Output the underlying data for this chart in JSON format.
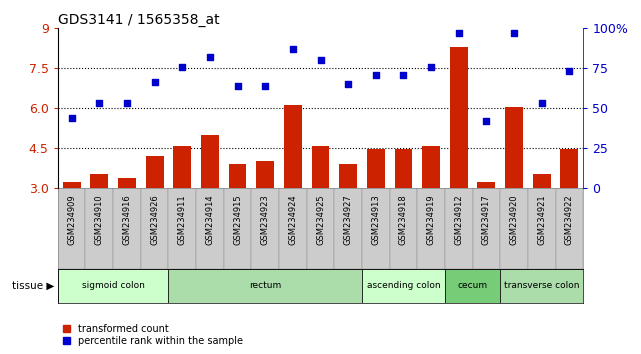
{
  "title": "GDS3141 / 1565358_at",
  "samples": [
    "GSM234909",
    "GSM234910",
    "GSM234916",
    "GSM234926",
    "GSM234911",
    "GSM234914",
    "GSM234915",
    "GSM234923",
    "GSM234924",
    "GSM234925",
    "GSM234927",
    "GSM234913",
    "GSM234918",
    "GSM234919",
    "GSM234912",
    "GSM234917",
    "GSM234920",
    "GSM234921",
    "GSM234922"
  ],
  "transformed_count": [
    3.2,
    3.5,
    3.35,
    4.2,
    4.55,
    5.0,
    3.9,
    4.0,
    6.1,
    4.55,
    3.9,
    4.45,
    4.45,
    4.55,
    8.3,
    3.2,
    6.05,
    3.5,
    4.45
  ],
  "percentile_rank": [
    44,
    53,
    53,
    66,
    76,
    82,
    64,
    64,
    87,
    80,
    65,
    71,
    71,
    76,
    97,
    42,
    97,
    53,
    73
  ],
  "bar_color": "#cc2200",
  "dot_color": "#0000cc",
  "ylim_left": [
    3.0,
    9.0
  ],
  "ylim_right": [
    0,
    100
  ],
  "yticks_left": [
    3.0,
    4.5,
    6.0,
    7.5,
    9.0
  ],
  "yticks_right": [
    0,
    25,
    50,
    75,
    100
  ],
  "hlines": [
    4.5,
    6.0,
    7.5
  ],
  "tissues": [
    {
      "label": "sigmoid colon",
      "start": 0,
      "end": 4,
      "color": "#ccffcc"
    },
    {
      "label": "rectum",
      "start": 4,
      "end": 11,
      "color": "#aaddaa"
    },
    {
      "label": "ascending colon",
      "start": 11,
      "end": 14,
      "color": "#ccffcc"
    },
    {
      "label": "cecum",
      "start": 14,
      "end": 16,
      "color": "#77cc77"
    },
    {
      "label": "transverse colon",
      "start": 16,
      "end": 19,
      "color": "#aaddaa"
    }
  ],
  "legend_red": "transformed count",
  "legend_blue": "percentile rank within the sample",
  "title_fontsize": 10,
  "tick_fontsize": 7
}
